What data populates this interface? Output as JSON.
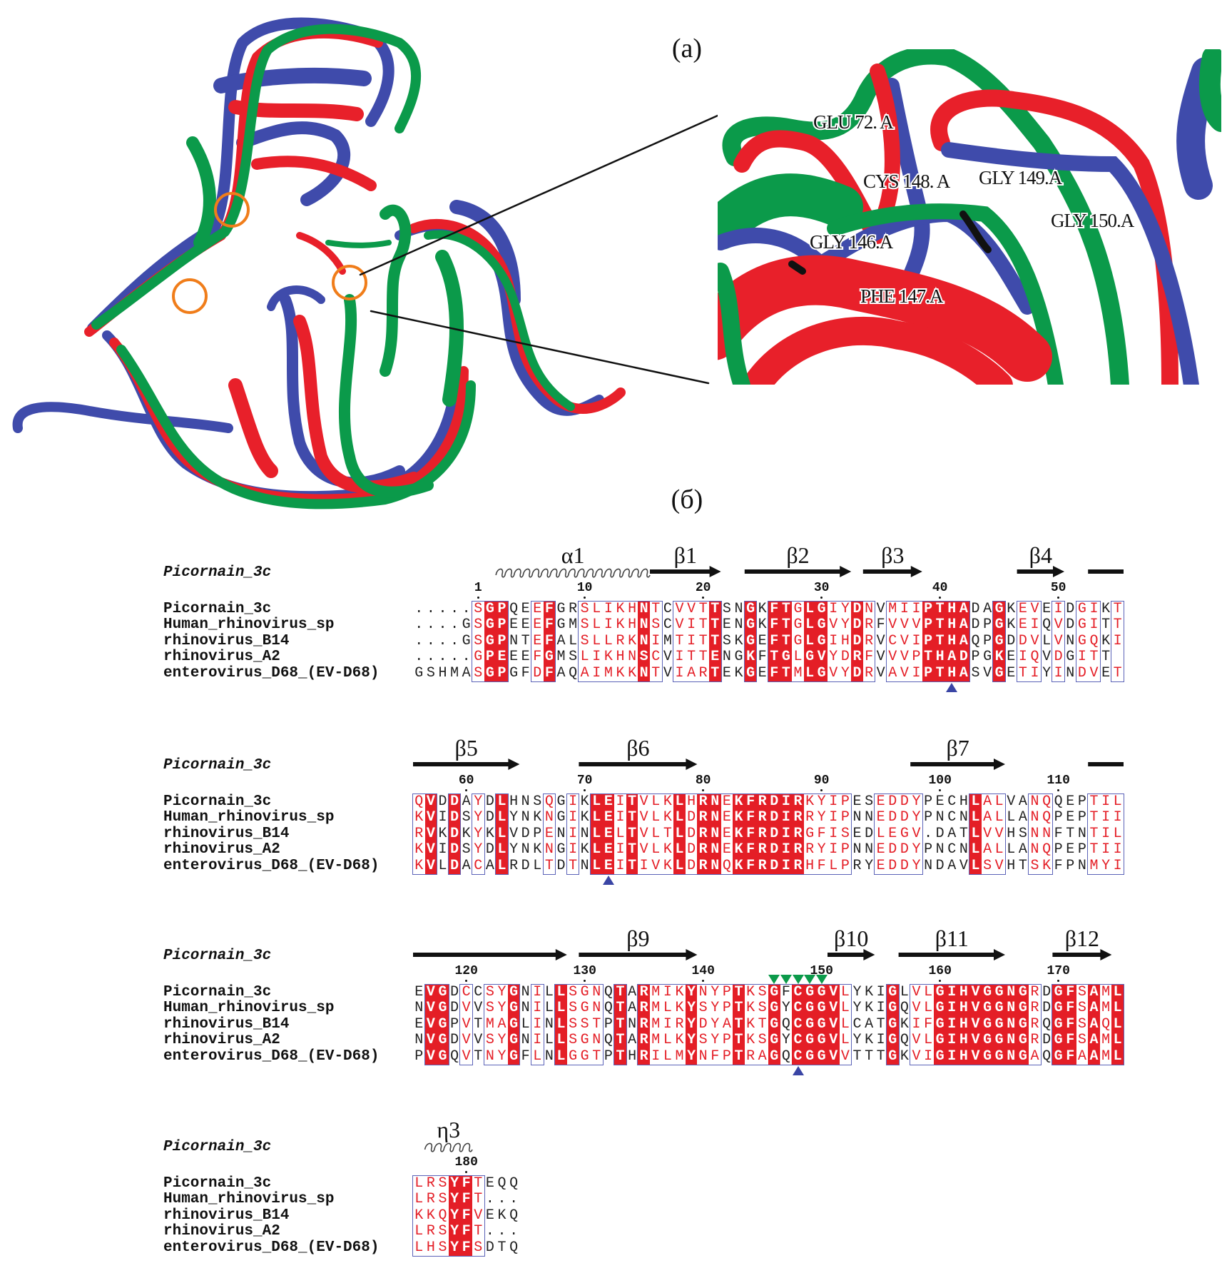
{
  "figure": {
    "panel_a_label": "(a)",
    "panel_b_label": "(б)",
    "structure_colors": {
      "blue": "#3f4bab",
      "red": "#e8202a",
      "green": "#0b9a4a",
      "highlight_circle": "#f07d1a"
    },
    "inset_labels": [
      "GLU 72. A",
      "CYS 148. A",
      "GLY 149.A",
      "GLY 150.A",
      "GLY 146.A",
      "PHE 147.A"
    ]
  },
  "alignment": {
    "colors": {
      "identical_bg": "#e41e26",
      "similar_text": "#e41e26",
      "box_border": "#5b62b8",
      "site_marker": "#3a45a5",
      "green_marker": "#0b9a4a"
    },
    "header_name": "Picornain_3c",
    "sequence_names": [
      "Picornain_3c",
      "Human_rhinovirus_sp",
      "rhinovirus_B14",
      "rhinovirus_A2",
      "enterovirus_D68_(EV-D68)"
    ],
    "blocks": [
      {
        "first_position": -4,
        "ticks": [
          1,
          10,
          20,
          30,
          40,
          50
        ],
        "secondary_structure": [
          {
            "type": "helix",
            "label": "α1",
            "start": 3,
            "end": 15
          },
          {
            "type": "strand",
            "label": "β1",
            "start": 16,
            "end": 21
          },
          {
            "type": "strand",
            "label": "β2",
            "start": 24,
            "end": 32
          },
          {
            "type": "strand",
            "label": "β3",
            "start": 34,
            "end": 38
          },
          {
            "type": "strand",
            "label": "β4",
            "start": 47,
            "end": 50
          },
          {
            "type": "line",
            "label": "",
            "start": 53,
            "end": 55
          }
        ],
        "sequences": [
          ".....SGPQEEFGRSLIKHNTCVVTTSNGKFTGLGIYDNVMIIPTHADAGKEVEIDGIKT",
          "....GSGPEEEFGMSLIKHNSCVITTENGKFTGLGVYDRFVVVPTHADPGKEIQVDGITT",
          "....GSGPNTEFALSLLRKNIMTITTSKGEFTGLGIHDRVCVIPTHAQPGDDVLVNGQKI",
          ".....GPEEEFGMSLIKHNSCVITTENGKFTGLGVYDRFVVVPTHADPGKEIQVDGITT",
          "GSHMASGPGFDFAQAIMKKNTVIARTEKGEFTMLGVYDRVAVIPTHASVGETIYINDVET"
        ],
        "conservation": ".....rRR..rR..rrrrrRr.rrrR..R.RRrRRrrRr.rrrRRRR..R.rr.r.rr.r",
        "site_markers": [
          41
        ],
        "green_markers": []
      },
      {
        "first_position": 56,
        "ticks": [
          60,
          70,
          80,
          90,
          100,
          110
        ],
        "secondary_structure": [
          {
            "type": "strand",
            "label": "β5",
            "start": 56,
            "end": 64
          },
          {
            "type": "strand",
            "label": "β6",
            "start": 70,
            "end": 79
          },
          {
            "type": "strand",
            "label": "β7",
            "start": 98,
            "end": 105
          },
          {
            "type": "line",
            "label": "",
            "start": 113,
            "end": 115
          }
        ],
        "sequences": [
          "QVDDAYDLHNSQGIKLEITVLKLHRNEKFRDIRKYIPESEDDYPECHLALVANQQEPTIL",
          "KVIDSYDLYNKNGIKLEITVLKLDRNEKFRDIRRYIPNNEDDYPNCNLALLANQPEPTII",
          "RVKDKYKLVDPENINLELTVLTLDRNEKFRDIRGFISEDLEGV.DATLVVHSNNFTNTIL",
          "KVIDSYDLYNKNGIKLEITVLKLDRNEKFRDIRRYIPNNEDDYPNCNLALLANQPEPTII",
          "KVLDACALRDLTDTNLEITIVKLDRNQKFRDIRHFLPRYEDDYNDAVLSVHTSKFPNMYI"
        ],
        "conservation": "rR.R.r.R...r.r.RRrRrrrRrRRrRRRRRRrrrr..rrrr....Rrr..rr...rrr",
        "site_markers": [
          72
        ],
        "green_markers": []
      },
      {
        "first_position": 116,
        "ticks": [
          120,
          130,
          140,
          150,
          160,
          170
        ],
        "secondary_structure": [
          {
            "type": "strand",
            "label": "",
            "start": 116,
            "end": 128
          },
          {
            "type": "strand",
            "label": "β9",
            "start": 130,
            "end": 139
          },
          {
            "type": "strand",
            "label": "β10",
            "start": 151,
            "end": 154
          },
          {
            "type": "strand",
            "label": "β11",
            "start": 157,
            "end": 165
          },
          {
            "type": "strand",
            "label": "β12",
            "start": 170,
            "end": 174
          }
        ],
        "sequences": [
          "EVGDCCSYGNILLSGNQTARMIKYNYPTKSGFCGGVLYKIGLVLGIHVGGNGRDGFSAML",
          "NVGDVVSYGNILLSGNQTARMLKYSYPTKSGYCGGVLYKIGQVLGIHVGGNGRDGFSAML",
          "EVGPVTMAGLINLSSTPTNRMIRYDYATKTGQCGGVLCATGKIFGIHVGGNGRQGFSAQL",
          "NVGDVVSYGNILLSGNQTARMLKYSYPTKSGYCGGVLYKIGQVLGIHVGGNGRDGFSAML",
          "PVGQVTNYGFLNLGGTPTHRILMYNFPTRAGQCGGVVTTTGKVIGIHVGGNGAQGFAAML"
        ],
        "conservation": ".RR.r.rrR.r.Rrrr.R.RrrrRrrrRrrRbRRRRr...R.rrRRRRRRRRr.RRrRrR",
        "site_markers": [
          148
        ],
        "green_markers": [
          146,
          147,
          148,
          149,
          150
        ]
      },
      {
        "first_position": 176,
        "ticks": [
          180
        ],
        "secondary_structure": [
          {
            "type": "helix",
            "label": "η3",
            "start": 177,
            "end": 180
          }
        ],
        "sequences": [
          "LRSYFTEQQ",
          "LRSYFT...",
          "KKQYFVEKQ",
          "LRSYFT...",
          "LHSYFSDTQ"
        ],
        "conservation": "rrrRRr...",
        "site_markers": [],
        "green_markers": []
      }
    ]
  }
}
